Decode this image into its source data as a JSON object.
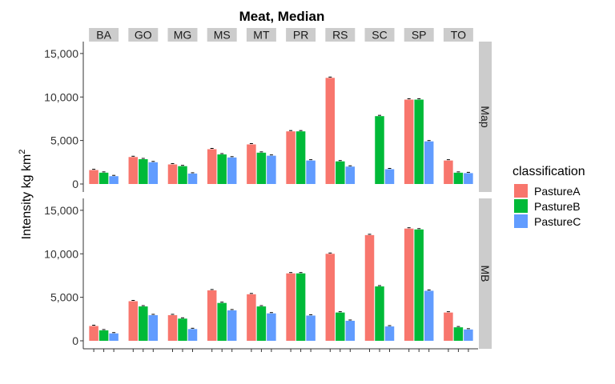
{
  "chart_data": {
    "type": "bar",
    "title": "Meat, Median",
    "ylabel": "Intensity kg km",
    "ylabel_superscript": "2",
    "xlabel": "",
    "ylim": [
      0,
      16000
    ],
    "y_ticks": [
      0,
      5000,
      10000,
      15000
    ],
    "y_tick_labels": [
      "0",
      "5,000",
      "10,000",
      "15,000"
    ],
    "categories": [
      "BA",
      "GO",
      "MG",
      "MS",
      "MT",
      "PR",
      "RS",
      "SC",
      "SP",
      "TO"
    ],
    "legend": {
      "title": "classification",
      "position": "right",
      "items": [
        {
          "name": "PastureA",
          "color": "#F8766D"
        },
        {
          "name": "PastureB",
          "color": "#00BA38"
        },
        {
          "name": "PastureC",
          "color": "#619CFF"
        }
      ]
    },
    "colors": {
      "PastureA": "#F8766D",
      "PastureB": "#00BA38",
      "PastureC": "#619CFF",
      "strip_bg": "#cccccc",
      "gridless_panel_bg": "#ffffff",
      "axis": "#333333"
    },
    "grid": false,
    "facets": [
      {
        "strip": "Map",
        "series": [
          {
            "name": "PastureA",
            "values": [
              1600,
              3100,
              2250,
              4000,
              4550,
              6050,
              12200,
              null,
              9700,
              2700
            ]
          },
          {
            "name": "PastureB",
            "values": [
              1300,
              2850,
              2050,
              3400,
              3600,
              6050,
              2600,
              7800,
              9700,
              1300
            ]
          },
          {
            "name": "PastureC",
            "values": [
              900,
              2500,
              1200,
              3050,
              3250,
              2700,
              2000,
              1700,
              4900,
              1250
            ]
          }
        ]
      },
      {
        "strip": "MB",
        "series": [
          {
            "name": "PastureA",
            "values": [
              1700,
              4550,
              2950,
              5800,
              5350,
              7750,
              10000,
              12150,
              12900,
              3250
            ]
          },
          {
            "name": "PastureB",
            "values": [
              1200,
              3950,
              2550,
              4350,
              3950,
              7750,
              3250,
              6250,
              12800,
              1550
            ]
          },
          {
            "name": "PastureC",
            "values": [
              850,
              2950,
              1350,
              3500,
              3150,
              2900,
              2300,
              1650,
              5750,
              1300
            ]
          }
        ]
      }
    ]
  }
}
